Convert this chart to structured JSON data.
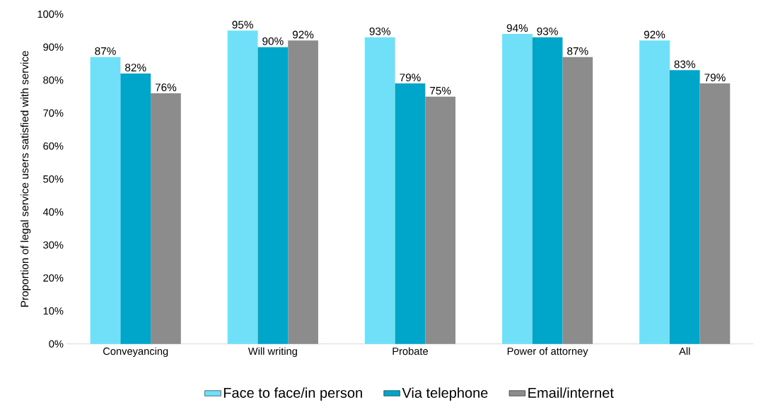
{
  "chart_data": {
    "type": "bar",
    "ylabel": "Proportion of legal service users  satisfied with service",
    "categories": [
      "Conveyancing",
      "Will writing",
      "Probate",
      "Power of attorney",
      "All"
    ],
    "series": [
      {
        "name": "Face to face/in person",
        "color": "#6fe0f7",
        "values": [
          87,
          95,
          93,
          94,
          92
        ],
        "value_labels": [
          "87%",
          "95%",
          "93%",
          "94%",
          "92%"
        ]
      },
      {
        "name": "Via telephone",
        "color": "#00a6c9",
        "values": [
          82,
          90,
          79,
          93,
          83
        ],
        "value_labels": [
          "82%",
          "90%",
          "79%",
          "93%",
          "83%"
        ]
      },
      {
        "name": "Email/internet",
        "color": "#8c8c8c",
        "values": [
          76,
          92,
          75,
          87,
          79
        ],
        "value_labels": [
          "76%",
          "92%",
          "75%",
          "87%",
          "79%"
        ]
      }
    ],
    "ylim": [
      0,
      100
    ],
    "yticks": [
      {
        "value": 0,
        "label": "0%"
      },
      {
        "value": 10,
        "label": "10%"
      },
      {
        "value": 20,
        "label": "20%"
      },
      {
        "value": 30,
        "label": "30%"
      },
      {
        "value": 40,
        "label": "40%"
      },
      {
        "value": 50,
        "label": "50%"
      },
      {
        "value": 60,
        "label": "60%"
      },
      {
        "value": 70,
        "label": "70%"
      },
      {
        "value": 80,
        "label": "80%"
      },
      {
        "value": 90,
        "label": "90%"
      },
      {
        "value": 100,
        "label": "100%"
      }
    ],
    "legend": "bottom"
  }
}
